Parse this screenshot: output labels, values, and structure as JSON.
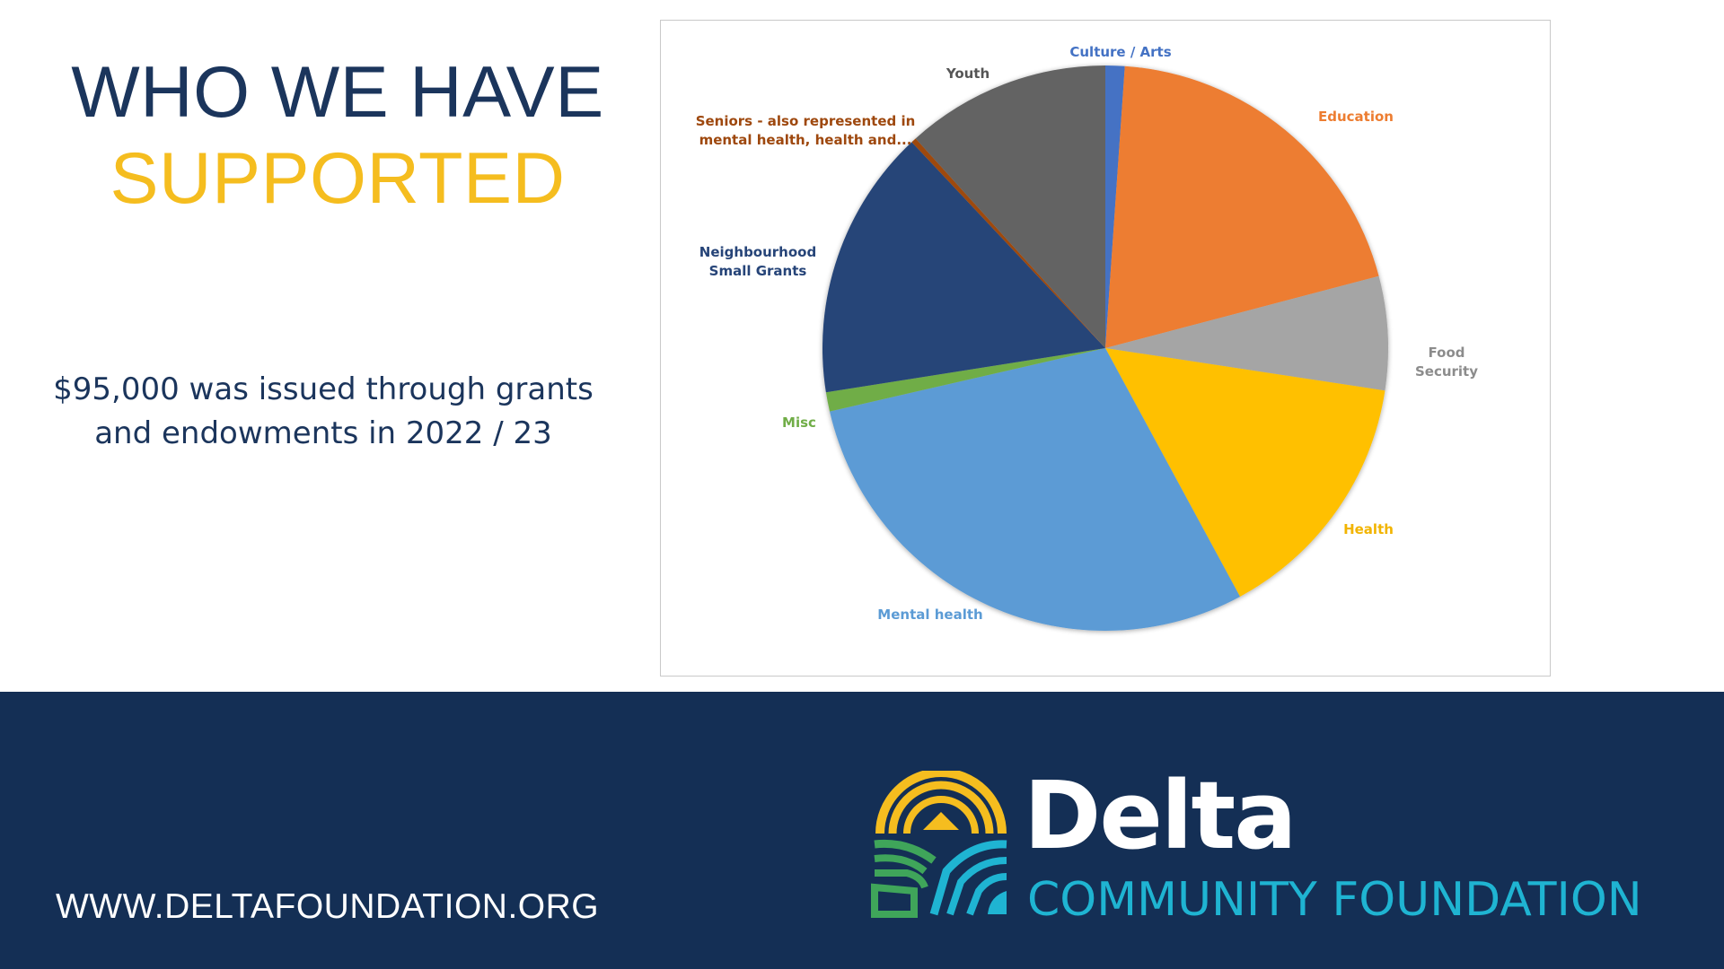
{
  "title": {
    "line1": "WHO WE HAVE",
    "line2": "SUPPORTED"
  },
  "summary": {
    "line1": "$95,000 was issued through grants",
    "line2": "and endowments in 2022 / 23"
  },
  "footer": {
    "website": "WWW.DELTAFOUNDATION.ORG",
    "logo_name": "Delta",
    "logo_subtitle": "COMMUNITY FOUNDATION"
  },
  "colors": {
    "navy": "#142f55",
    "title_navy": "#1b355c",
    "accent_yellow": "#f5bd1f",
    "logo_teal": "#1fb4d2",
    "logo_green": "#3fa55a"
  },
  "chart_data": {
    "type": "pie",
    "title": "",
    "legend": "none",
    "slices": [
      {
        "label": [
          "Culture / Arts"
        ],
        "value": 1.1,
        "color": "#4472c4",
        "label_color": "#4472c4"
      },
      {
        "label": [
          "Education"
        ],
        "value": 19.8,
        "color": "#ed7d31",
        "label_color": "#ed7d31"
      },
      {
        "label": [
          "Food",
          "Security"
        ],
        "value": 6.5,
        "color": "#a5a5a5",
        "label_color": "#8c8c8c"
      },
      {
        "label": [
          "Health"
        ],
        "value": 14.7,
        "color": "#ffc000",
        "label_color": "#f2b400"
      },
      {
        "label": [
          "Mental health"
        ],
        "value": 29.3,
        "color": "#5b9bd5",
        "label_color": "#5b9bd5"
      },
      {
        "label": [
          "Misc"
        ],
        "value": 1.1,
        "color": "#70ad47",
        "label_color": "#70ad47"
      },
      {
        "label": [
          "Neighbourhood",
          "Small Grants"
        ],
        "value": 15.5,
        "color": "#264478",
        "label_color": "#264478"
      },
      {
        "label": [
          "Seniors - also represented in",
          "mental health, health and..."
        ],
        "value": 0.3,
        "color": "#9e480e",
        "label_color": "#9e480e"
      },
      {
        "label": [
          "Youth"
        ],
        "value": 11.7,
        "color": "#636363",
        "label_color": "#555555"
      }
    ]
  }
}
